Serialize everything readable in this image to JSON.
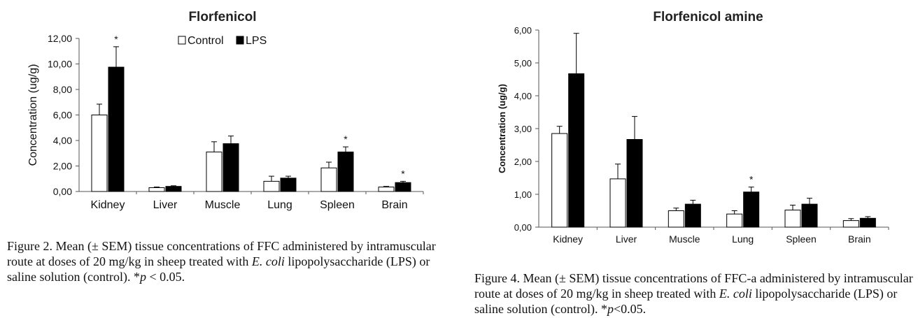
{
  "chart_data": [
    {
      "type": "bar",
      "title": "Florfenicol",
      "ylabel": "Concentration (ug/g)",
      "xlabel": "",
      "ylim": [
        0,
        12
      ],
      "yticks": [
        "0,00",
        "2,00",
        "4,00",
        "6,00",
        "8,00",
        "10,00",
        "12,00"
      ],
      "categories": [
        "Kidney",
        "Liver",
        "Muscle",
        "Lung",
        "Spleen",
        "Brain"
      ],
      "series": [
        {
          "name": "Control",
          "values": [
            6.0,
            0.3,
            3.1,
            0.8,
            1.85,
            0.35
          ],
          "errors": [
            0.85,
            0.05,
            0.8,
            0.4,
            0.45,
            0.05
          ]
        },
        {
          "name": "LPS",
          "values": [
            9.75,
            0.4,
            3.75,
            1.05,
            3.1,
            0.7
          ],
          "errors": [
            1.6,
            0.05,
            0.6,
            0.15,
            0.4,
            0.1
          ]
        }
      ],
      "significance": [
        true,
        false,
        false,
        false,
        true,
        true
      ],
      "significance_mark": "*",
      "legend_position": "top",
      "grid": false
    },
    {
      "type": "bar",
      "title": "Florfenicol  amine",
      "ylabel": "Concentration (ug/g)",
      "xlabel": "",
      "ylim": [
        0,
        6
      ],
      "yticks": [
        "0,00",
        "1,00",
        "2,00",
        "3,00",
        "4,00",
        "5,00",
        "6,00"
      ],
      "categories": [
        "Kidney",
        "Liver",
        "Muscle",
        "Lung",
        "Spleen",
        "Brain"
      ],
      "series": [
        {
          "name": "Control",
          "values": [
            2.85,
            1.47,
            0.5,
            0.4,
            0.52,
            0.2
          ],
          "errors": [
            0.22,
            0.45,
            0.08,
            0.1,
            0.15,
            0.06
          ]
        },
        {
          "name": "LPS",
          "values": [
            4.67,
            2.67,
            0.7,
            1.07,
            0.7,
            0.27
          ],
          "errors": [
            1.23,
            0.7,
            0.12,
            0.15,
            0.18,
            0.05
          ]
        }
      ],
      "significance": [
        false,
        false,
        false,
        true,
        false,
        false
      ],
      "significance_mark": "*",
      "legend_position": "none",
      "grid": false
    }
  ],
  "captions": {
    "fig2": {
      "prefix": "Figure 2.  Mean (± SEM) tissue concentrations of FFC administered by intramuscular route at doses of 20 mg/kg in sheep treated with ",
      "organism": "E. coli",
      "suffix": " lipopolysaccharide (LPS) or saline solution (control). *",
      "p_symbol": "p",
      "p_value": " < 0.05."
    },
    "fig4": {
      "prefix": "Figure 4.  Mean (± SEM) tissue concentrations of FFC-a administered by intramuscular route at doses of 20 mg/kg in sheep treated with ",
      "organism": "E. coli",
      "suffix": " lipopolysaccharide (LPS) or saline solution (control). *",
      "p_symbol": "p",
      "p_value": "<0.05."
    }
  },
  "colors": {
    "control_fill": "#ffffff",
    "lps_fill": "#000000",
    "axis": "#555555"
  }
}
